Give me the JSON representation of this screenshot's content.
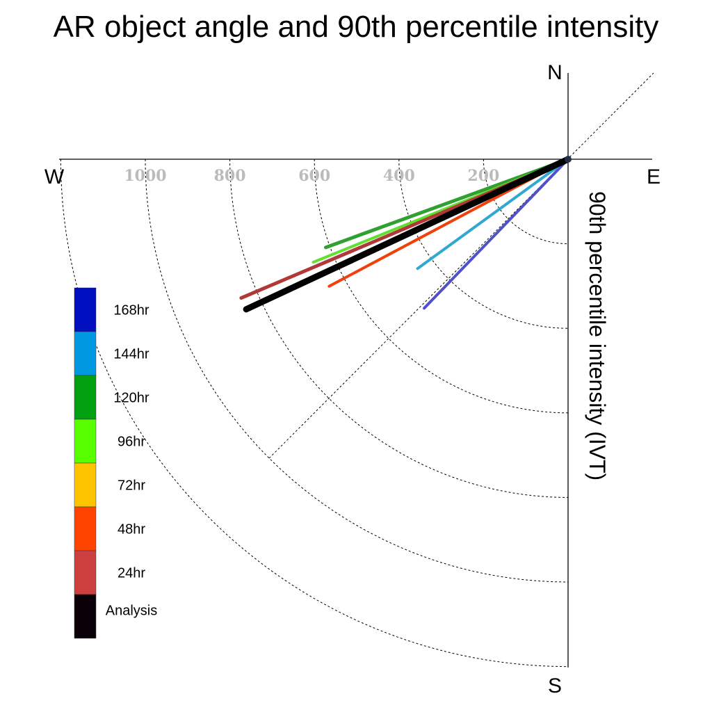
{
  "chart_data": {
    "type": "polar-vector",
    "title": "AR object angle and 90th percentile intensity",
    "ylabel": "90th percentile intensity (IVT)",
    "compass": {
      "north": "N",
      "south": "S",
      "east": "E",
      "west": "W"
    },
    "radial_ticks": [
      {
        "value": 200,
        "label": "200"
      },
      {
        "value": 400,
        "label": "400"
      },
      {
        "value": 600,
        "label": "600"
      },
      {
        "value": 800,
        "label": "800"
      },
      {
        "value": 1000,
        "label": "1000"
      }
    ],
    "rings": [
      200,
      400,
      600,
      800,
      1000,
      1200
    ],
    "reference_line_angle_deg": 45,
    "series": [
      {
        "name": "168hr",
        "color": "#0010c0",
        "line_color": "#5050c8",
        "angle_deg": 46,
        "intensity": 490,
        "width": 4
      },
      {
        "name": "144hr",
        "color": "#0098e0",
        "line_color": "#30a8d0",
        "angle_deg": 36,
        "intensity": 440,
        "width": 4
      },
      {
        "name": "120hr",
        "color": "#00a010",
        "line_color": "#30a030",
        "angle_deg": 20,
        "intensity": 610,
        "width": 5
      },
      {
        "name": "96hr",
        "color": "#58ff00",
        "line_color": "#60e030",
        "angle_deg": 22,
        "intensity": 650,
        "width": 4
      },
      {
        "name": "72hr",
        "color": "#ffc400",
        "line_color": "#f0b800",
        "angle_deg": 28,
        "intensity": 540,
        "width": 4
      },
      {
        "name": "48hr",
        "color": "#ff4400",
        "line_color": "#f04010",
        "angle_deg": 28,
        "intensity": 640,
        "width": 4
      },
      {
        "name": "24hr",
        "color": "#cc4040",
        "line_color": "#b03838",
        "angle_deg": 23,
        "intensity": 840,
        "width": 5
      },
      {
        "name": "Analysis",
        "color": "#0c0008",
        "line_color": "#000000",
        "angle_deg": 25,
        "intensity": 840,
        "width": 9
      }
    ]
  }
}
